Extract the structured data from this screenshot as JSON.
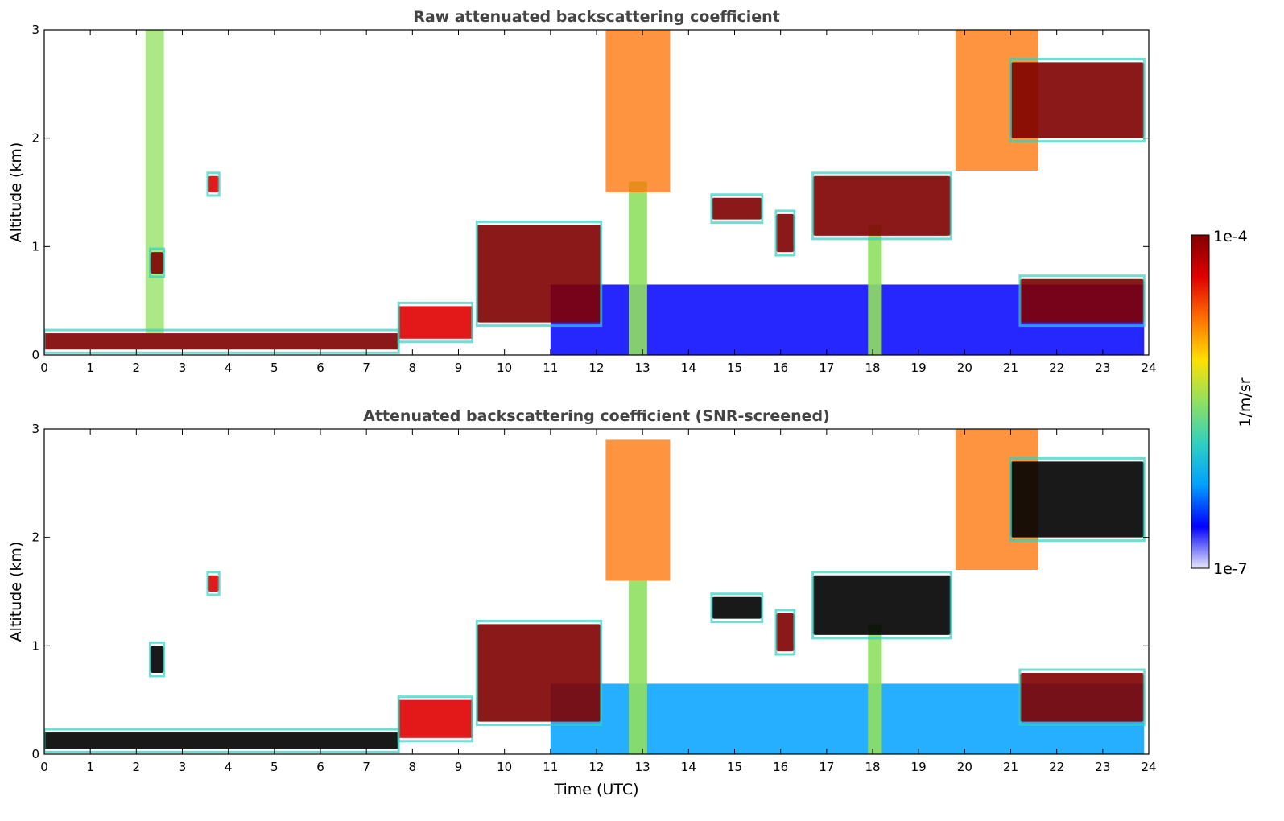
{
  "chart_data": [
    {
      "type": "heatmap",
      "title": "Raw attenuated backscattering coefficient",
      "xlabel": "",
      "ylabel": "Altitude (km)",
      "xlim": [
        0,
        24
      ],
      "ylim": [
        0,
        3
      ],
      "xticks": [
        "0",
        "1",
        "2",
        "3",
        "4",
        "5",
        "6",
        "7",
        "8",
        "9",
        "10",
        "11",
        "12",
        "13",
        "14",
        "15",
        "16",
        "17",
        "18",
        "19",
        "20",
        "21",
        "22",
        "23",
        "24"
      ],
      "yticks": [
        "0",
        "1",
        "2",
        "3"
      ],
      "screened": false,
      "features": [
        {
          "kind": "boundary_layer",
          "time": [
            0,
            7.7
          ],
          "alt": [
            0.05,
            0.2
          ],
          "level": 1.0
        },
        {
          "kind": "boundary_layer",
          "time": [
            7.7,
            9.3
          ],
          "alt": [
            0.15,
            0.45
          ],
          "level": 0.9
        },
        {
          "kind": "plume",
          "time": [
            2.2,
            2.6
          ],
          "alt": [
            0.2,
            3.0
          ],
          "level": 0.5
        },
        {
          "kind": "cloud",
          "time": [
            2.3,
            2.6
          ],
          "alt": [
            0.75,
            0.95
          ],
          "level": 1.0
        },
        {
          "kind": "cloud",
          "time": [
            3.55,
            3.8
          ],
          "alt": [
            1.5,
            1.65
          ],
          "level": 0.9
        },
        {
          "kind": "cloud",
          "time": [
            9.4,
            12.1
          ],
          "alt": [
            0.3,
            1.2
          ],
          "level": 0.95
        },
        {
          "kind": "virga",
          "time": [
            12.2,
            13.6
          ],
          "alt": [
            1.5,
            3.0
          ],
          "level": 0.7
        },
        {
          "kind": "precipitation",
          "time": [
            12.7,
            13.1
          ],
          "alt": [
            0.0,
            1.6
          ],
          "level": 0.55
        },
        {
          "kind": "cloud",
          "time": [
            14.5,
            15.6
          ],
          "alt": [
            1.25,
            1.45
          ],
          "level": 1.0
        },
        {
          "kind": "cloud",
          "time": [
            15.9,
            16.3
          ],
          "alt": [
            0.95,
            1.3
          ],
          "level": 0.95
        },
        {
          "kind": "cloud",
          "time": [
            16.7,
            19.7
          ],
          "alt": [
            1.1,
            1.65
          ],
          "level": 1.0
        },
        {
          "kind": "precipitation",
          "time": [
            17.9,
            18.2
          ],
          "alt": [
            0.0,
            1.2
          ],
          "level": 0.55
        },
        {
          "kind": "virga",
          "time": [
            19.8,
            21.6
          ],
          "alt": [
            1.7,
            3.0
          ],
          "level": 0.75
        },
        {
          "kind": "cloud",
          "time": [
            21.0,
            23.9
          ],
          "alt": [
            2.0,
            2.7
          ],
          "level": 1.0
        },
        {
          "kind": "cloud",
          "time": [
            21.2,
            23.9
          ],
          "alt": [
            0.3,
            0.7
          ],
          "level": 0.95
        },
        {
          "kind": "aerosol_layer",
          "time": [
            11.0,
            23.9
          ],
          "alt": [
            0.0,
            0.65
          ],
          "level": 0.15
        }
      ]
    },
    {
      "type": "heatmap",
      "title": "Attenuated backscattering coefficient (SNR-screened)",
      "xlabel": "Time (UTC)",
      "ylabel": "Altitude (km)",
      "xlim": [
        0,
        24
      ],
      "ylim": [
        0,
        3
      ],
      "xticks": [
        "0",
        "1",
        "2",
        "3",
        "4",
        "5",
        "6",
        "7",
        "8",
        "9",
        "10",
        "11",
        "12",
        "13",
        "14",
        "15",
        "16",
        "17",
        "18",
        "19",
        "20",
        "21",
        "22",
        "23",
        "24"
      ],
      "yticks": [
        "0",
        "1",
        "2",
        "3"
      ],
      "screened": true,
      "features": [
        {
          "kind": "boundary_layer",
          "time": [
            0,
            7.7
          ],
          "alt": [
            0.05,
            0.2
          ],
          "level": 1.0
        },
        {
          "kind": "boundary_layer",
          "time": [
            7.7,
            9.3
          ],
          "alt": [
            0.15,
            0.5
          ],
          "level": 0.9
        },
        {
          "kind": "cloud",
          "time": [
            2.3,
            2.6
          ],
          "alt": [
            0.75,
            1.0
          ],
          "level": 1.0
        },
        {
          "kind": "cloud",
          "time": [
            3.55,
            3.8
          ],
          "alt": [
            1.5,
            1.65
          ],
          "level": 0.9
        },
        {
          "kind": "cloud",
          "time": [
            9.4,
            12.1
          ],
          "alt": [
            0.3,
            1.2
          ],
          "level": 0.95
        },
        {
          "kind": "virga",
          "time": [
            12.2,
            13.6
          ],
          "alt": [
            1.6,
            2.9
          ],
          "level": 0.7
        },
        {
          "kind": "precipitation",
          "time": [
            12.7,
            13.1
          ],
          "alt": [
            0.0,
            1.6
          ],
          "level": 0.55
        },
        {
          "kind": "cloud",
          "time": [
            14.5,
            15.6
          ],
          "alt": [
            1.25,
            1.45
          ],
          "level": 1.0
        },
        {
          "kind": "cloud",
          "time": [
            15.9,
            16.3
          ],
          "alt": [
            0.95,
            1.3
          ],
          "level": 0.95
        },
        {
          "kind": "cloud",
          "time": [
            16.7,
            19.7
          ],
          "alt": [
            1.1,
            1.65
          ],
          "level": 1.0
        },
        {
          "kind": "precipitation",
          "time": [
            17.9,
            18.2
          ],
          "alt": [
            0.0,
            1.2
          ],
          "level": 0.55
        },
        {
          "kind": "virga",
          "time": [
            19.8,
            21.6
          ],
          "alt": [
            1.7,
            3.0
          ],
          "level": 0.75
        },
        {
          "kind": "cloud",
          "time": [
            21.0,
            23.9
          ],
          "alt": [
            2.0,
            2.7
          ],
          "level": 1.0
        },
        {
          "kind": "cloud",
          "time": [
            21.2,
            23.9
          ],
          "alt": [
            0.3,
            0.75
          ],
          "level": 0.95
        },
        {
          "kind": "aerosol_layer",
          "time": [
            11.0,
            23.9
          ],
          "alt": [
            0.0,
            0.65
          ],
          "level": 0.2
        }
      ]
    }
  ],
  "colorbar": {
    "label": "1/m/sr",
    "max_label": "1e-4",
    "min_label": "1e-7",
    "colors": [
      "#e8e8f8",
      "#0000ff",
      "#00a0ff",
      "#30d0c0",
      "#90e060",
      "#ffe000",
      "#ff7000",
      "#e00000",
      "#800000"
    ]
  },
  "screened_peak_color": "#000000"
}
